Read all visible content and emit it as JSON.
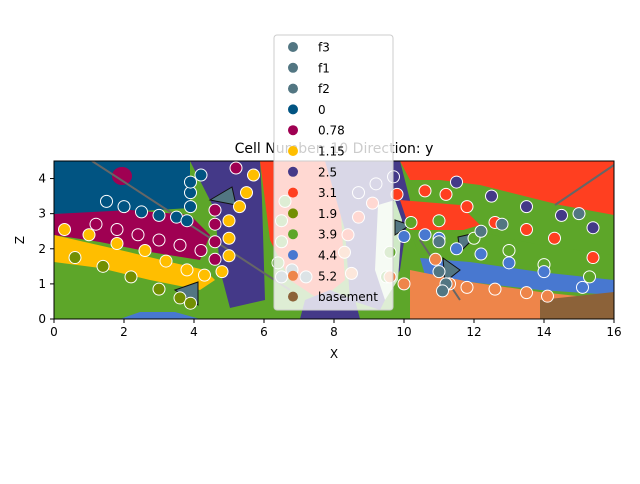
{
  "chart_data": {
    "type": "scatter",
    "title": "Cell Number: 10 Direction: y",
    "xlabel": "X",
    "ylabel": "Z",
    "xlim": [
      0,
      16
    ],
    "ylim": [
      0,
      4.5
    ],
    "xticks": [
      "0",
      "2",
      "4",
      "6",
      "8",
      "10",
      "12",
      "14",
      "16"
    ],
    "yticks": [
      "0",
      "1",
      "2",
      "3",
      "4"
    ],
    "legend_position": "top-center, overlapping the plot",
    "legend": [
      {
        "label": "f3",
        "color": "#527682"
      },
      {
        "label": "f1",
        "color": "#527682"
      },
      {
        "label": "f2",
        "color": "#527682"
      },
      {
        "label": "0",
        "color": "#015482"
      },
      {
        "label": "0.78",
        "color": "#9f0052"
      },
      {
        "label": "1.15",
        "color": "#ffbe00"
      },
      {
        "label": "2.5",
        "color": "#443988"
      },
      {
        "label": "3.1",
        "color": "#ff3f20"
      },
      {
        "label": "1.9",
        "color": "#728f02"
      },
      {
        "label": "3.9",
        "color": "#5da629"
      },
      {
        "label": "4.4",
        "color": "#4878d0"
      },
      {
        "label": "5.2",
        "color": "#ee854a"
      },
      {
        "label": "basement",
        "color": "#8c6239"
      }
    ],
    "series": [
      {
        "name": "0",
        "color": "#015482",
        "points": [
          [
            1.5,
            3.35
          ],
          [
            2,
            3.2
          ],
          [
            2.5,
            3.05
          ],
          [
            3,
            2.95
          ],
          [
            3.5,
            2.9
          ],
          [
            3.8,
            2.8
          ],
          [
            3.9,
            3.2
          ],
          [
            3.9,
            3.6
          ],
          [
            3.9,
            3.9
          ],
          [
            4.2,
            4.1
          ]
        ]
      },
      {
        "name": "0.78",
        "color": "#9f0052",
        "points": [
          [
            1.2,
            2.7
          ],
          [
            1.8,
            2.55
          ],
          [
            2.4,
            2.4
          ],
          [
            3,
            2.25
          ],
          [
            3.6,
            2.1
          ],
          [
            4.2,
            1.95
          ],
          [
            4.6,
            1.7
          ],
          [
            4.6,
            2.2
          ],
          [
            4.6,
            2.7
          ],
          [
            4.6,
            3.1
          ],
          [
            5.2,
            4.3
          ]
        ]
      },
      {
        "name": "1.15",
        "color": "#ffbe00",
        "points": [
          [
            0.3,
            2.55
          ],
          [
            1,
            2.4
          ],
          [
            1.8,
            2.15
          ],
          [
            2.6,
            1.95
          ],
          [
            3.2,
            1.65
          ],
          [
            3.8,
            1.4
          ],
          [
            4.3,
            1.25
          ],
          [
            4.8,
            1.35
          ],
          [
            5,
            1.8
          ],
          [
            5,
            2.3
          ],
          [
            5,
            2.8
          ],
          [
            5.3,
            3.2
          ],
          [
            5.5,
            3.6
          ],
          [
            5.7,
            4.1
          ]
        ]
      },
      {
        "name": "2.5",
        "color": "#443988",
        "points": [
          [
            8.7,
            3.6
          ],
          [
            9.2,
            3.85
          ],
          [
            9.7,
            4.05
          ],
          [
            11.5,
            3.9
          ],
          [
            12.5,
            3.5
          ],
          [
            13.5,
            3.2
          ],
          [
            14.5,
            2.95
          ],
          [
            15.4,
            2.6
          ]
        ]
      },
      {
        "name": "3.1",
        "color": "#ff3f20",
        "points": [
          [
            8.4,
            2.4
          ],
          [
            8.7,
            2.9
          ],
          [
            9.1,
            3.3
          ],
          [
            9.8,
            3.55
          ],
          [
            10.6,
            3.65
          ],
          [
            11.2,
            3.55
          ],
          [
            11.8,
            3.2
          ],
          [
            12.6,
            2.75
          ],
          [
            13.5,
            2.55
          ],
          [
            14.3,
            2.3
          ],
          [
            15.4,
            1.75
          ]
        ]
      },
      {
        "name": "1.9",
        "color": "#728f02",
        "points": [
          [
            0.6,
            1.75
          ],
          [
            1.4,
            1.5
          ],
          [
            2.2,
            1.2
          ],
          [
            3,
            0.85
          ],
          [
            3.6,
            0.6
          ],
          [
            3.9,
            0.45
          ]
        ]
      },
      {
        "name": "3.9",
        "color": "#5da629",
        "points": [
          [
            6.4,
            1.6
          ],
          [
            6.5,
            2.2
          ],
          [
            6.5,
            2.8
          ],
          [
            6.6,
            3.35
          ],
          [
            9.5,
            1.2
          ],
          [
            9.6,
            1.9
          ],
          [
            10.2,
            2.75
          ],
          [
            11,
            2.8
          ],
          [
            12,
            2.3
          ],
          [
            13,
            1.95
          ],
          [
            14,
            1.55
          ],
          [
            15.3,
            1.2
          ]
        ]
      },
      {
        "name": "4.4",
        "color": "#4878d0",
        "points": [
          [
            10,
            2.35
          ],
          [
            10.6,
            2.4
          ],
          [
            11,
            2.3
          ],
          [
            11.5,
            2.0
          ],
          [
            12.2,
            1.85
          ],
          [
            13,
            1.6
          ],
          [
            14,
            1.35
          ],
          [
            15.1,
            0.9
          ]
        ]
      },
      {
        "name": "5.2",
        "color": "#ee854a",
        "points": [
          [
            8.5,
            1.3
          ],
          [
            8.3,
            1.9
          ],
          [
            9.6,
            1.2
          ],
          [
            10,
            1.0
          ],
          [
            10.9,
            1.7
          ],
          [
            11.3,
            1.0
          ],
          [
            11.8,
            0.9
          ],
          [
            12.6,
            0.85
          ],
          [
            13.5,
            0.75
          ],
          [
            14.1,
            0.65
          ]
        ]
      },
      {
        "name": "f3",
        "color": "#527682",
        "points": [
          [
            11,
            1.35
          ],
          [
            11.2,
            1.0
          ],
          [
            11.1,
            0.8
          ]
        ]
      },
      {
        "name": "f1",
        "color": "#527682",
        "points": [
          [
            11,
            2.2
          ],
          [
            12.2,
            2.5
          ],
          [
            12.8,
            2.7
          ],
          [
            15,
            3.0
          ]
        ]
      },
      {
        "name": "f2",
        "color": "#527682",
        "points": [
          [
            6.5,
            1.2
          ],
          [
            6.8,
            1.4
          ],
          [
            7.2,
            1.2
          ]
        ]
      }
    ]
  }
}
